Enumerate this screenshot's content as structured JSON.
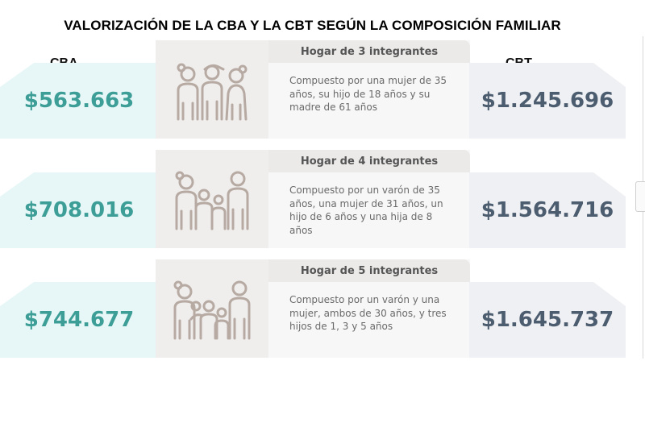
{
  "title": "VALORIZACIÓN DE LA CBA Y LA CBT SEGÚN LA COMPOSICIÓN FAMILIAR",
  "columns": {
    "cba": "CBA",
    "cbt": "CBT"
  },
  "colors": {
    "cba_text": "#3d9e97",
    "cba_band": "#e7f7f7",
    "cbt_text": "#4d5d70",
    "cbt_band": "#eff0f3",
    "icon_stroke": "#b7aaa3"
  },
  "rows": [
    {
      "cba": "$563.663",
      "heading": "Hogar de 3 integrantes",
      "description": "Compuesto por una mujer de 35 años, su hijo de 18 años y su madre de 61 años",
      "cbt": "$1.245.696",
      "icon": "family-of-3-icon"
    },
    {
      "cba": "$708.016",
      "heading": "Hogar de 4 integrantes",
      "description": "Compuesto por un varón de 35 años, una mujer de 31 años, un hijo de 6 años y una hija de 8 años",
      "cbt": "$1.564.716",
      "icon": "family-of-4-icon"
    },
    {
      "cba": "$744.677",
      "heading": "Hogar de 5 integrantes",
      "description": "Compuesto por un varón y una mujer, ambos de 30 años, y tres hijos de 1, 3 y 5 años",
      "cbt": "$1.645.737",
      "icon": "family-of-5-icon"
    }
  ]
}
